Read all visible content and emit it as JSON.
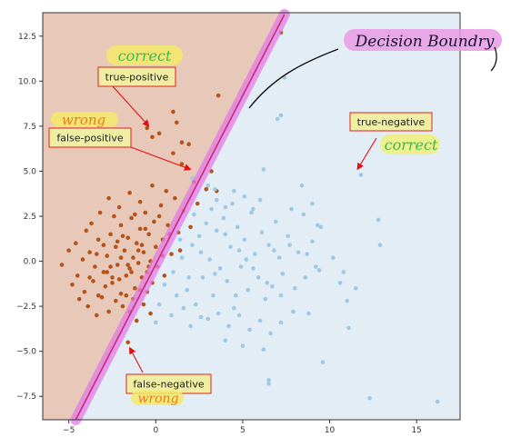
{
  "chart_data": {
    "type": "scatter",
    "title": "",
    "xlabel": "",
    "ylabel": "",
    "xlim": [
      -6.5,
      17.5
    ],
    "ylim": [
      -8.8,
      13.8
    ],
    "x_ticks": [
      -5,
      0,
      5,
      10,
      15
    ],
    "y_ticks": [
      -7.5,
      -5.0,
      -2.5,
      0.0,
      2.5,
      5.0,
      7.5,
      10.0,
      12.5
    ],
    "x_tick_labels": [
      "−5",
      "0",
      "5",
      "10",
      "15"
    ],
    "y_tick_labels": [
      "−7.5",
      "−5.0",
      "−2.5",
      "0.0",
      "2.5",
      "5.0",
      "7.5",
      "10.0",
      "12.5"
    ],
    "grid": false,
    "regions": [
      {
        "class": "positive",
        "color": "#e8c8b8"
      },
      {
        "class": "negative",
        "color": "#e3edf5"
      }
    ],
    "decision_boundary": {
      "points": [
        [
          -4.6,
          -8.8
        ],
        [
          7.4,
          13.7
        ]
      ]
    },
    "series": [
      {
        "color": "#b5541a",
        "points": [
          [
            -0.5,
            7.4
          ],
          [
            -0.2,
            6.9
          ],
          [
            0.2,
            7.1
          ],
          [
            1.0,
            8.3
          ],
          [
            1.2,
            7.7
          ],
          [
            1.5,
            6.6
          ],
          [
            1.9,
            6.5
          ],
          [
            1.0,
            6.0
          ],
          [
            1.5,
            5.4
          ],
          [
            2.2,
            4.4
          ],
          [
            3.2,
            5.0
          ],
          [
            2.9,
            4.0
          ],
          [
            3.5,
            3.9
          ],
          [
            3.6,
            9.2
          ],
          [
            7.2,
            12.7
          ],
          [
            -4.0,
            1.7
          ],
          [
            -3.8,
            0.5
          ],
          [
            -4.2,
            0.1
          ],
          [
            -3.5,
            -0.3
          ],
          [
            -3.3,
            1.2
          ],
          [
            -3.0,
            -0.6
          ],
          [
            -2.8,
            0.3
          ],
          [
            -2.6,
            1.5
          ],
          [
            -2.5,
            -1.2
          ],
          [
            -2.3,
            0.8
          ],
          [
            -2.2,
            -0.2
          ],
          [
            -2.0,
            2.0
          ],
          [
            -2.0,
            -1.8
          ],
          [
            -1.8,
            0.6
          ],
          [
            -1.7,
            -0.8
          ],
          [
            -1.6,
            1.3
          ],
          [
            -1.5,
            -0.4
          ],
          [
            -1.4,
            2.4
          ],
          [
            -1.3,
            0.2
          ],
          [
            -1.2,
            -1.5
          ],
          [
            -1.1,
            1.0
          ],
          [
            -1.0,
            -0.1
          ],
          [
            -0.9,
            1.8
          ],
          [
            -0.8,
            -0.9
          ],
          [
            -0.7,
            0.5
          ],
          [
            -0.6,
            2.7
          ],
          [
            -0.5,
            -0.6
          ],
          [
            -0.4,
            1.5
          ],
          [
            -0.3,
            0.0
          ],
          [
            -0.2,
            -1.2
          ],
          [
            -0.1,
            2.2
          ],
          [
            0.0,
            0.8
          ],
          [
            0.1,
            -0.3
          ],
          [
            0.3,
            3.1
          ],
          [
            0.4,
            1.2
          ],
          [
            0.5,
            -0.8
          ],
          [
            0.7,
            2.0
          ],
          [
            0.9,
            0.4
          ],
          [
            1.1,
            3.5
          ],
          [
            1.3,
            1.6
          ],
          [
            1.6,
            2.8
          ],
          [
            2.0,
            1.9
          ],
          [
            2.4,
            3.2
          ],
          [
            -3.2,
            2.7
          ],
          [
            -2.7,
            3.5
          ],
          [
            -2.1,
            3.0
          ],
          [
            -1.5,
            3.8
          ],
          [
            -0.9,
            3.3
          ],
          [
            -0.2,
            4.2
          ],
          [
            0.6,
            3.9
          ],
          [
            -4.5,
            -0.8
          ],
          [
            -4.1,
            -1.7
          ],
          [
            -3.9,
            -2.5
          ],
          [
            -3.6,
            -1.1
          ],
          [
            -3.4,
            -3.0
          ],
          [
            -3.1,
            -2.0
          ],
          [
            -2.9,
            -1.4
          ],
          [
            -2.7,
            -2.8
          ],
          [
            -2.5,
            -0.9
          ],
          [
            -2.3,
            -2.2
          ],
          [
            -2.1,
            -1.0
          ],
          [
            -1.9,
            -2.5
          ],
          [
            -1.7,
            -1.9
          ],
          [
            -1.5,
            -2.8
          ],
          [
            -1.3,
            -2.1
          ],
          [
            -1.1,
            -3.3
          ],
          [
            -0.9,
            -1.6
          ],
          [
            -0.7,
            -2.4
          ],
          [
            -0.5,
            -1.7
          ],
          [
            -0.3,
            -2.9
          ],
          [
            -1.6,
            -4.5
          ],
          [
            -5.4,
            -0.2
          ],
          [
            -5.0,
            0.6
          ],
          [
            -4.8,
            -1.3
          ],
          [
            -4.6,
            1.0
          ],
          [
            -4.4,
            -2.1
          ],
          [
            -3.7,
            2.1
          ],
          [
            -3.3,
            -1.9
          ],
          [
            -3.0,
            0.9
          ],
          [
            -2.4,
            2.5
          ],
          [
            -1.9,
            1.4
          ],
          [
            -1.2,
            2.6
          ],
          [
            -0.6,
            1.8
          ],
          [
            0.2,
            2.5
          ],
          [
            0.8,
            1.5
          ],
          [
            1.4,
            0.6
          ],
          [
            -2.6,
            -0.3
          ],
          [
            -2.0,
            0.2
          ],
          [
            -1.4,
            -0.6
          ],
          [
            -0.8,
            0.9
          ],
          [
            -3.8,
            -0.9
          ],
          [
            -3.4,
            0.4
          ],
          [
            -2.8,
            -0.6
          ],
          [
            -2.2,
            1.1
          ],
          [
            -1.6,
            -0.2
          ],
          [
            -1.0,
            0.6
          ],
          [
            -0.4,
            -0.3
          ],
          [
            0.4,
            0.3
          ]
        ]
      },
      {
        "color": "#9ec9e4",
        "points": [
          [
            2.1,
            4.6
          ],
          [
            3.0,
            4.2
          ],
          [
            3.5,
            3.4
          ],
          [
            4.0,
            3.0
          ],
          [
            4.5,
            3.9
          ],
          [
            5.1,
            3.6
          ],
          [
            6.0,
            3.4
          ],
          [
            6.2,
            5.1
          ],
          [
            7.0,
            7.9
          ],
          [
            7.2,
            8.1
          ],
          [
            7.4,
            10.2
          ],
          [
            8.5,
            2.6
          ],
          [
            9.0,
            3.2
          ],
          [
            9.3,
            2.0
          ],
          [
            11.8,
            4.8
          ],
          [
            12.8,
            2.3
          ],
          [
            12.9,
            0.9
          ],
          [
            11.5,
            -1.5
          ],
          [
            10.6,
            -1.2
          ],
          [
            11.0,
            -2.2
          ],
          [
            11.1,
            -3.7
          ],
          [
            12.3,
            -7.6
          ],
          [
            16.2,
            -7.8
          ],
          [
            9.6,
            -5.6
          ],
          [
            6.5,
            -6.6
          ],
          [
            6.5,
            -6.8
          ],
          [
            1.0,
            -0.6
          ],
          [
            1.5,
            0.2
          ],
          [
            1.8,
            -1.6
          ],
          [
            2.1,
            0.9
          ],
          [
            2.3,
            -2.4
          ],
          [
            2.5,
            1.4
          ],
          [
            2.7,
            -0.9
          ],
          [
            2.9,
            2.1
          ],
          [
            3.1,
            0.1
          ],
          [
            3.3,
            -1.9
          ],
          [
            3.5,
            1.7
          ],
          [
            3.7,
            -0.4
          ],
          [
            3.9,
            2.4
          ],
          [
            4.1,
            -1.1
          ],
          [
            4.3,
            0.8
          ],
          [
            4.5,
            -2.6
          ],
          [
            4.7,
            1.9
          ],
          [
            4.9,
            -0.3
          ],
          [
            5.1,
            1.2
          ],
          [
            5.3,
            -1.6
          ],
          [
            5.5,
            2.7
          ],
          [
            5.7,
            0.4
          ],
          [
            5.9,
            -0.9
          ],
          [
            6.1,
            1.6
          ],
          [
            6.3,
            -2.1
          ],
          [
            6.5,
            0.9
          ],
          [
            6.7,
            -1.4
          ],
          [
            6.9,
            2.2
          ],
          [
            7.1,
            0.2
          ],
          [
            7.3,
            -0.7
          ],
          [
            7.6,
            1.4
          ],
          [
            7.9,
            -2.8
          ],
          [
            8.2,
            0.5
          ],
          [
            8.6,
            -0.9
          ],
          [
            9.0,
            1.1
          ],
          [
            9.4,
            -0.5
          ],
          [
            3.0,
            -3.2
          ],
          [
            3.6,
            -2.9
          ],
          [
            4.2,
            -3.6
          ],
          [
            4.8,
            -3.0
          ],
          [
            5.4,
            -3.8
          ],
          [
            6.0,
            -3.3
          ],
          [
            6.6,
            -4.0
          ],
          [
            7.2,
            -3.4
          ],
          [
            4.0,
            -4.4
          ],
          [
            5.0,
            -4.7
          ],
          [
            6.2,
            -4.9
          ],
          [
            2.0,
            -3.6
          ],
          [
            2.6,
            -3.1
          ],
          [
            1.6,
            -2.6
          ],
          [
            1.2,
            -1.9
          ],
          [
            0.9,
            -3.0
          ],
          [
            0.5,
            -1.3
          ],
          [
            0.2,
            -2.4
          ],
          [
            0.0,
            -3.4
          ],
          [
            3.4,
            4.0
          ],
          [
            4.4,
            3.2
          ],
          [
            5.6,
            2.9
          ],
          [
            7.8,
            2.9
          ],
          [
            8.4,
            4.2
          ],
          [
            9.5,
            1.9
          ],
          [
            10.2,
            0.2
          ],
          [
            10.8,
            -0.6
          ],
          [
            2.2,
            2.6
          ],
          [
            3.2,
            2.9
          ],
          [
            4.0,
            1.5
          ],
          [
            4.8,
            0.6
          ],
          [
            5.6,
            -0.4
          ],
          [
            6.4,
            -1.2
          ],
          [
            7.2,
            -1.9
          ],
          [
            8.0,
            -1.5
          ],
          [
            8.8,
            -2.9
          ],
          [
            9.2,
            -0.3
          ],
          [
            1.4,
            1.2
          ],
          [
            1.9,
            -0.9
          ],
          [
            2.6,
            0.5
          ],
          [
            3.4,
            -0.7
          ],
          [
            4.6,
            -1.9
          ],
          [
            5.2,
            0.1
          ],
          [
            6.8,
            0.6
          ],
          [
            7.7,
            0.9
          ],
          [
            8.7,
            0.4
          ]
        ]
      }
    ],
    "annotations": [
      {
        "text": "true-positive",
        "arrow_to": [
          -0.4,
          7.5
        ]
      },
      {
        "text": "false-positive",
        "arrow_to": [
          2.0,
          5.1
        ]
      },
      {
        "text": "true-negative",
        "arrow_to": [
          11.6,
          5.1
        ]
      },
      {
        "text": "false-negative",
        "arrow_to": [
          -1.5,
          -4.8
        ]
      }
    ],
    "handwritten": [
      {
        "text": "correct"
      },
      {
        "text": "wrong"
      },
      {
        "text": "Decision Boundry"
      },
      {
        "text": "correct"
      },
      {
        "text": "wrong"
      }
    ]
  }
}
